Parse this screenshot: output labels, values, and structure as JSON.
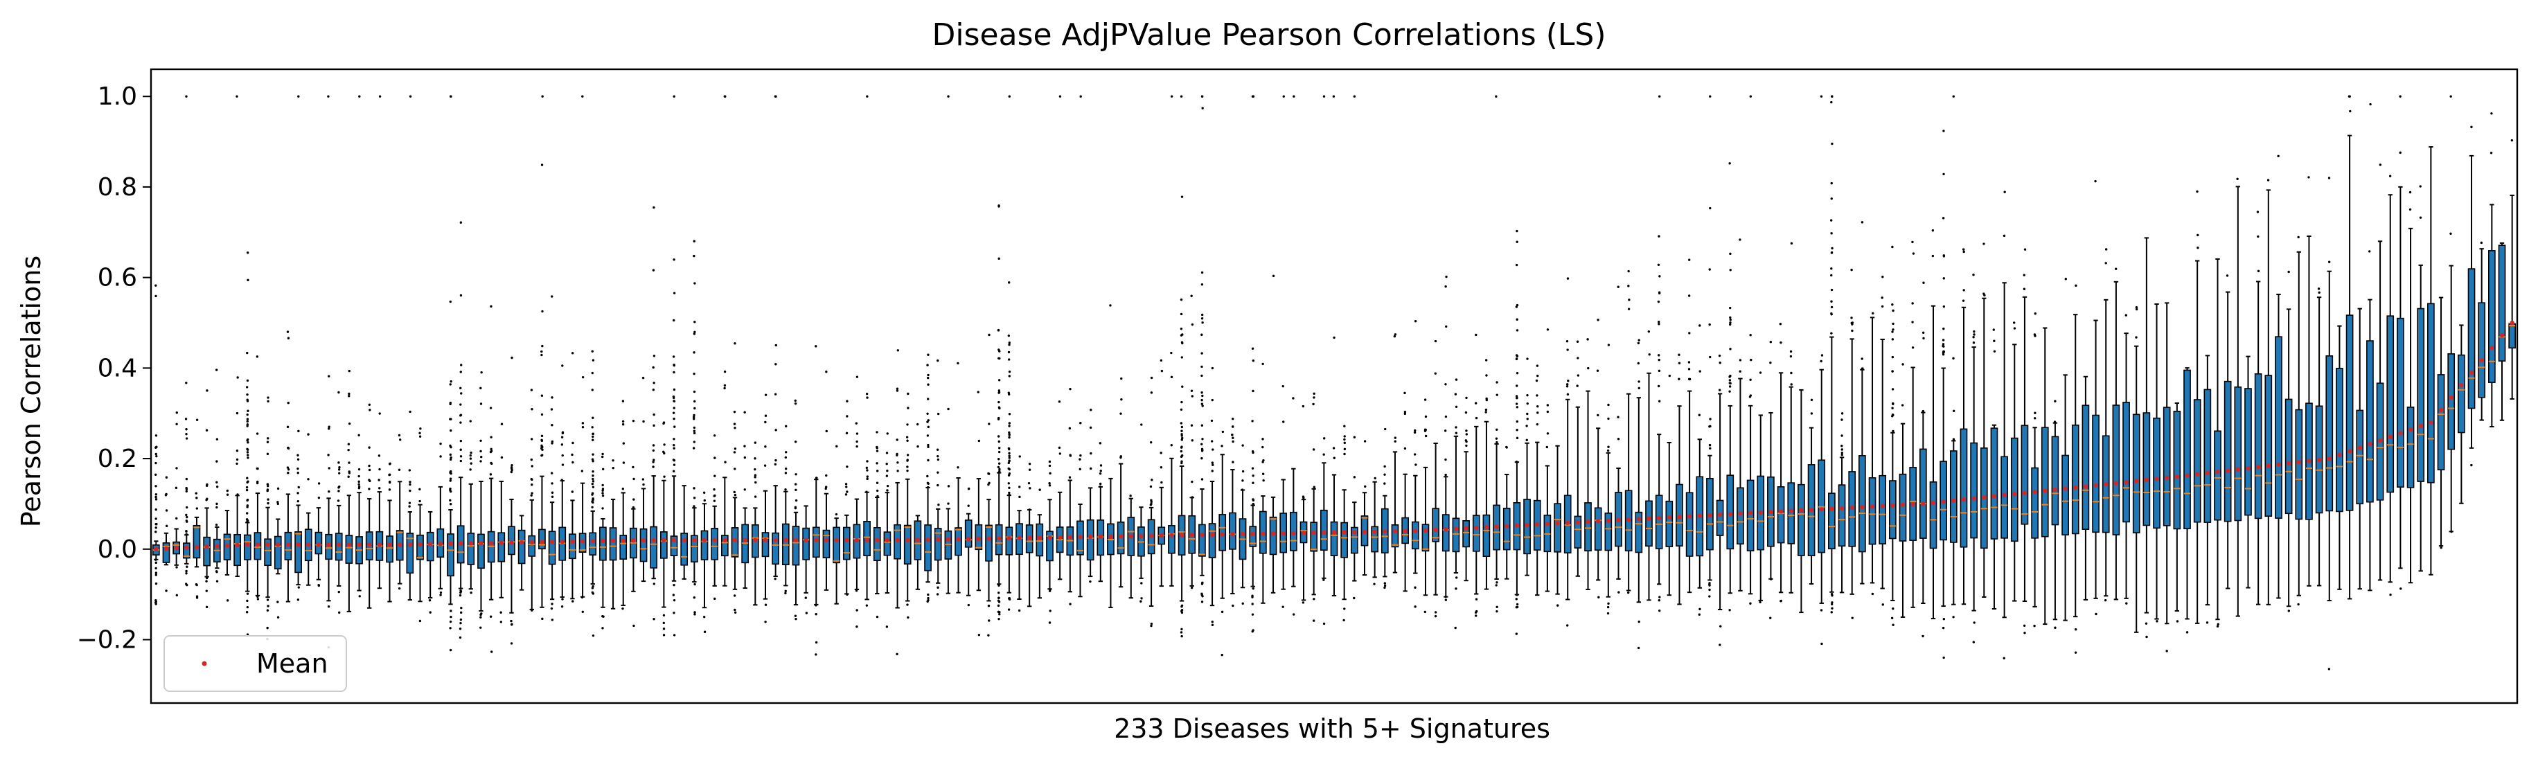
{
  "chart_data": {
    "type": "box",
    "title": "Disease AdjPValue Pearson Correlations (LS)",
    "xlabel": "233 Diseases with 5+ Signatures",
    "ylabel": "Pearson Correlations",
    "ylim": [
      -0.34,
      1.06
    ],
    "yticks": [
      -0.2,
      0.0,
      0.2,
      0.4,
      0.6,
      0.8,
      1.0
    ],
    "ytick_labels": [
      "−0.2",
      "0.0",
      "0.2",
      "0.4",
      "0.6",
      "0.8",
      "1.0"
    ],
    "n_categories": 233,
    "box_color": "#1f77b4",
    "mean_color": "#d62728",
    "grid": false,
    "legend": {
      "position": "lower-left",
      "entries": [
        {
          "label": "Mean",
          "marker": "red-dot"
        }
      ]
    },
    "box_summaries_sampled": [
      {
        "index": 1,
        "q1": -0.01,
        "median": 0.0,
        "q3": 0.01,
        "whisker_low": -0.02,
        "whisker_high": 0.03,
        "mean": 0.0
      },
      {
        "index": 10,
        "q1": -0.02,
        "median": 0.0,
        "q3": 0.03,
        "whisker_low": -0.08,
        "whisker_high": 0.1,
        "mean": 0.01
      },
      {
        "index": 25,
        "q1": -0.03,
        "median": 0.0,
        "q3": 0.04,
        "whisker_low": -0.12,
        "whisker_high": 0.12,
        "mean": 0.01
      },
      {
        "index": 50,
        "q1": -0.02,
        "median": 0.01,
        "q3": 0.04,
        "whisker_low": -0.1,
        "whisker_high": 0.12,
        "mean": 0.02
      },
      {
        "index": 75,
        "q1": -0.02,
        "median": 0.02,
        "q3": 0.05,
        "whisker_low": -0.1,
        "whisker_high": 0.12,
        "mean": 0.02
      },
      {
        "index": 100,
        "q1": -0.01,
        "median": 0.02,
        "q3": 0.06,
        "whisker_low": -0.1,
        "whisker_high": 0.15,
        "mean": 0.03
      },
      {
        "index": 125,
        "q1": 0.0,
        "median": 0.03,
        "q3": 0.07,
        "whisker_low": -0.08,
        "whisker_high": 0.18,
        "mean": 0.04
      },
      {
        "index": 150,
        "q1": 0.0,
        "median": 0.05,
        "q3": 0.12,
        "whisker_low": -0.1,
        "whisker_high": 0.3,
        "mean": 0.07
      },
      {
        "index": 175,
        "q1": 0.01,
        "median": 0.08,
        "q3": 0.2,
        "whisker_low": -0.12,
        "whisker_high": 0.4,
        "mean": 0.1
      },
      {
        "index": 200,
        "q1": 0.05,
        "median": 0.13,
        "q3": 0.3,
        "whisker_low": -0.15,
        "whisker_high": 0.55,
        "mean": 0.16
      },
      {
        "index": 215,
        "q1": 0.08,
        "median": 0.18,
        "q3": 0.4,
        "whisker_low": -0.1,
        "whisker_high": 0.7,
        "mean": 0.2
      },
      {
        "index": 225,
        "q1": 0.15,
        "median": 0.25,
        "q3": 0.45,
        "whisker_low": -0.05,
        "whisker_high": 0.75,
        "mean": 0.28
      },
      {
        "index": 233,
        "q1": 0.45,
        "median": 0.5,
        "q3": 0.55,
        "whisker_low": 0.4,
        "whisker_high": 0.62,
        "mean": 0.5
      }
    ]
  }
}
